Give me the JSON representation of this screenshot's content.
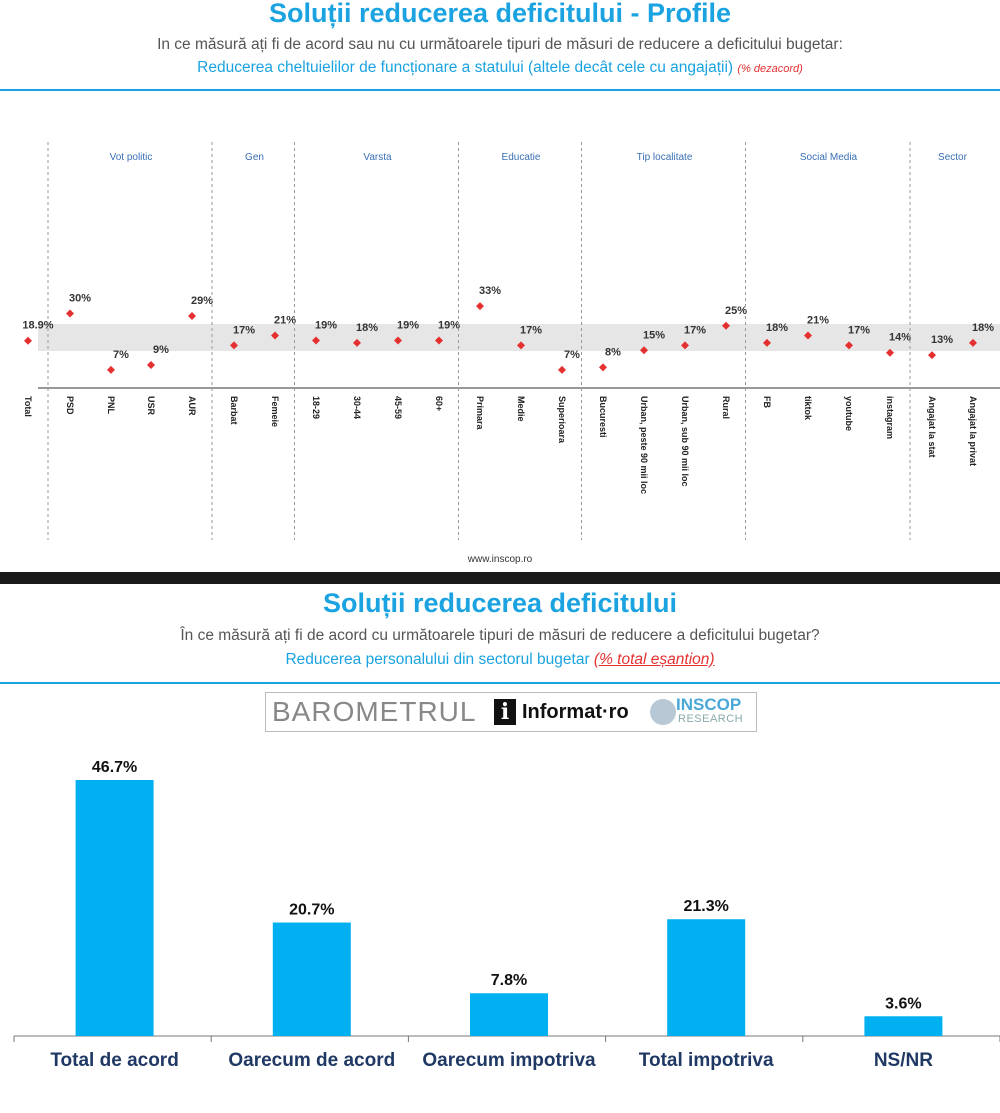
{
  "top": {
    "title": "Soluții reducerea deficitului - Profile",
    "subtitle": "In ce măsură ați fi de acord sau nu cu următoarele tipuri de măsuri de reducere a deficitului bugetar:",
    "subtitle2": "Reducerea cheltuielilor de funcționare a statului (altele decât cele cu angajații)",
    "note": "(% dezacord)",
    "website": "www.inscop.ro"
  },
  "bottom": {
    "title": "Soluții reducerea deficitului",
    "subtitle": "În ce măsură ați fi de acord cu următoarele tipuri de măsuri de reducere a deficitului bugetar?",
    "subtitle2": "Reducerea personalului din sectorul bugetar",
    "note": "(% total eșantion)",
    "logo": {
      "barometrul": "BAROMETRUL",
      "informat": "Informat·ro",
      "inscop": "INSCOP",
      "research": "RESEARCH",
      "i_letter": "i"
    }
  },
  "colors": {
    "accent": "#1aa3e0",
    "point": "#e53030",
    "band": "#e6e6e6",
    "bar": "#00b0f0"
  },
  "chart_data": [
    {
      "type": "scatter",
      "title": "Soluții reducerea deficitului - Profile",
      "ylim": [
        0,
        40
      ],
      "band": [
        15,
        22
      ],
      "groups": [
        {
          "name": "",
          "categories": [
            "Total"
          ],
          "values": [
            18.9
          ],
          "labels": [
            "18.9%"
          ]
        },
        {
          "name": "Vot politic",
          "categories": [
            "PSD",
            "PNL",
            "USR",
            "AUR"
          ],
          "values": [
            30,
            7,
            9,
            29
          ],
          "labels": [
            "30%",
            "7%",
            "9%",
            "29%"
          ]
        },
        {
          "name": "Gen",
          "categories": [
            "Barbat",
            "Femeie"
          ],
          "values": [
            17,
            21
          ],
          "labels": [
            "17%",
            "21%"
          ]
        },
        {
          "name": "Varsta",
          "categories": [
            "18-29",
            "30-44",
            "45-59",
            "60+"
          ],
          "values": [
            19,
            18,
            19,
            19
          ],
          "labels": [
            "19%",
            "18%",
            "19%",
            "19%"
          ]
        },
        {
          "name": "Educatie",
          "categories": [
            "Primara",
            "Medie",
            "Superioara"
          ],
          "values": [
            33,
            17,
            7
          ],
          "labels": [
            "33%",
            "17%",
            "7%"
          ]
        },
        {
          "name": "Tip localitate",
          "categories": [
            "Bucuresti",
            "Urban, peste 90 mii loc",
            "Urban, sub 90 mii loc",
            "Rural"
          ],
          "values": [
            8,
            15,
            17,
            25
          ],
          "labels": [
            "8%",
            "15%",
            "17%",
            "25%"
          ]
        },
        {
          "name": "Social Media",
          "categories": [
            "FB",
            "tiktok",
            "youtube",
            "instagram"
          ],
          "values": [
            18,
            21,
            17,
            14
          ],
          "labels": [
            "18%",
            "21%",
            "17%",
            "14%"
          ]
        },
        {
          "name": "Sector",
          "categories": [
            "Angajat la stat",
            "Angajat la privat"
          ],
          "values": [
            13,
            18
          ],
          "labels": [
            "13%",
            "18%"
          ]
        }
      ]
    },
    {
      "type": "bar",
      "title": "Soluții reducerea deficitului",
      "categories": [
        "Total de acord",
        "Oarecum de acord",
        "Oarecum impotriva",
        "Total impotriva",
        "NS/NR"
      ],
      "values": [
        46.7,
        20.7,
        7.8,
        21.3,
        3.6
      ],
      "labels": [
        "46.7%",
        "20.7%",
        "7.8%",
        "21.3%",
        "3.6%"
      ],
      "ylim": [
        0,
        50
      ]
    }
  ]
}
